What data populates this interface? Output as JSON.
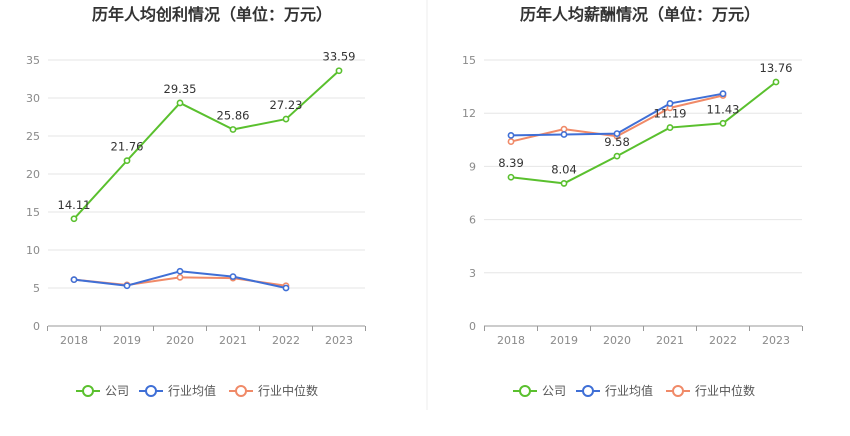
{
  "colors": {
    "company": "#5ac02e",
    "industry_avg": "#3f6fd6",
    "industry_median": "#f08a68",
    "grid": "#e6e6e6",
    "axis": "#999999",
    "divider": "#eeeeee"
  },
  "legend": {
    "company": "公司",
    "industry_avg": "行业均值",
    "industry_median": "行业中位数"
  },
  "chart_data": [
    {
      "type": "line",
      "title": "历年人均创利情况（单位：万元）",
      "categories": [
        "2018",
        "2019",
        "2020",
        "2021",
        "2022",
        "2023"
      ],
      "ylim": [
        0,
        35
      ],
      "yticks": [
        0,
        5,
        10,
        15,
        20,
        25,
        30,
        35
      ],
      "series": [
        {
          "name": "公司",
          "key": "company",
          "values": [
            14.11,
            21.76,
            29.35,
            25.86,
            27.23,
            33.59
          ],
          "labels": [
            "14.11",
            "21.76",
            "29.35",
            "25.86",
            "27.23",
            "33.59"
          ]
        },
        {
          "name": "行业均值",
          "key": "industry_avg",
          "values": [
            6.1,
            5.3,
            7.2,
            6.5,
            5.0,
            null
          ]
        },
        {
          "name": "行业中位数",
          "key": "industry_median",
          "values": [
            6.1,
            5.4,
            6.4,
            6.3,
            5.3,
            null
          ]
        }
      ]
    },
    {
      "type": "line",
      "title": "历年人均薪酬情况（单位：万元）",
      "categories": [
        "2018",
        "2019",
        "2020",
        "2021",
        "2022",
        "2023"
      ],
      "ylim": [
        0,
        15
      ],
      "yticks": [
        0,
        3,
        6,
        9,
        12,
        15
      ],
      "series": [
        {
          "name": "公司",
          "key": "company",
          "values": [
            8.39,
            8.04,
            9.58,
            11.19,
            11.43,
            13.76
          ],
          "labels": [
            "8.39",
            "8.04",
            "9.58",
            "11.19",
            "11.43",
            "13.76"
          ]
        },
        {
          "name": "行业均值",
          "key": "industry_avg",
          "values": [
            10.75,
            10.8,
            10.85,
            12.55,
            13.1,
            null
          ]
        },
        {
          "name": "行业中位数",
          "key": "industry_median",
          "values": [
            10.4,
            11.1,
            10.7,
            12.3,
            13.0,
            null
          ]
        }
      ]
    }
  ]
}
